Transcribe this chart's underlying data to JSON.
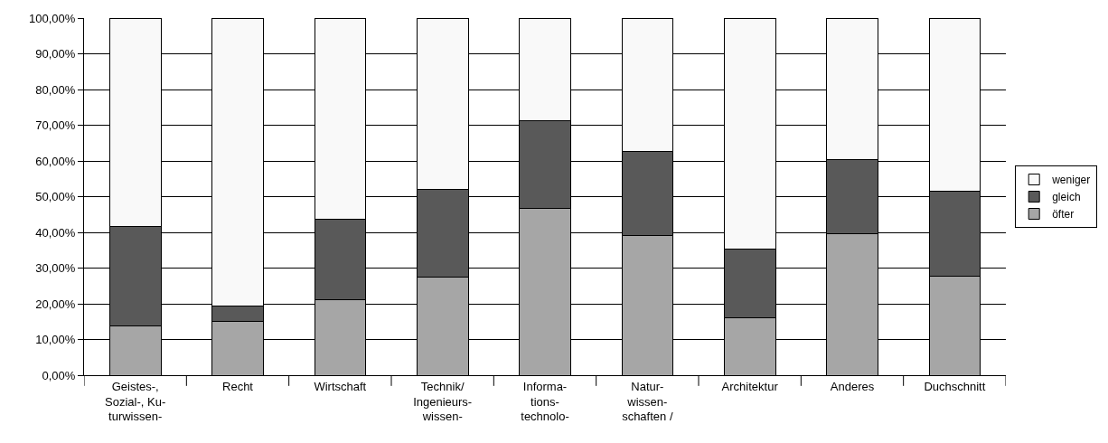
{
  "chart_data": {
    "type": "bar",
    "stacked": true,
    "categories": [
      "Geistes-,\nSozial-, Ku-\nturwissen-",
      "Recht",
      "Wirtschaft",
      "Technik/\nIngenieurs-\nwissen-",
      "Informa-\ntions-\ntechnolo-",
      "Natur-\nwissen-\nschaften /",
      "Architektur",
      "Anderes",
      "Duchschnitt"
    ],
    "series": [
      {
        "name": "öfter",
        "color": "#a6a6a6",
        "values": [
          13.8,
          15.1,
          21.1,
          27.4,
          46.8,
          39.0,
          16.1,
          39.5,
          27.6
        ]
      },
      {
        "name": "gleich",
        "color": "#595959",
        "values": [
          27.9,
          4.2,
          22.6,
          24.6,
          24.4,
          23.7,
          19.3,
          21.0,
          23.8
        ]
      },
      {
        "name": "weniger",
        "color": "#f9f9f9",
        "values": [
          58.3,
          80.7,
          56.3,
          48.0,
          28.8,
          37.3,
          64.6,
          39.5,
          48.6
        ]
      }
    ],
    "ylim": [
      0,
      100
    ],
    "yticks": [
      {
        "value": 0,
        "label": "0,00%"
      },
      {
        "value": 10,
        "label": "10,00%"
      },
      {
        "value": 20,
        "label": "20,00%"
      },
      {
        "value": 30,
        "label": "30,00%"
      },
      {
        "value": 40,
        "label": "40,00%"
      },
      {
        "value": 50,
        "label": "50,00%"
      },
      {
        "value": 60,
        "label": "60,00%"
      },
      {
        "value": 70,
        "label": "70,00%"
      },
      {
        "value": 80,
        "label": "80,00%"
      },
      {
        "value": 90,
        "label": "90,00%"
      },
      {
        "value": 100,
        "label": "100,00%"
      }
    ],
    "grid": "y",
    "legend": "right"
  }
}
